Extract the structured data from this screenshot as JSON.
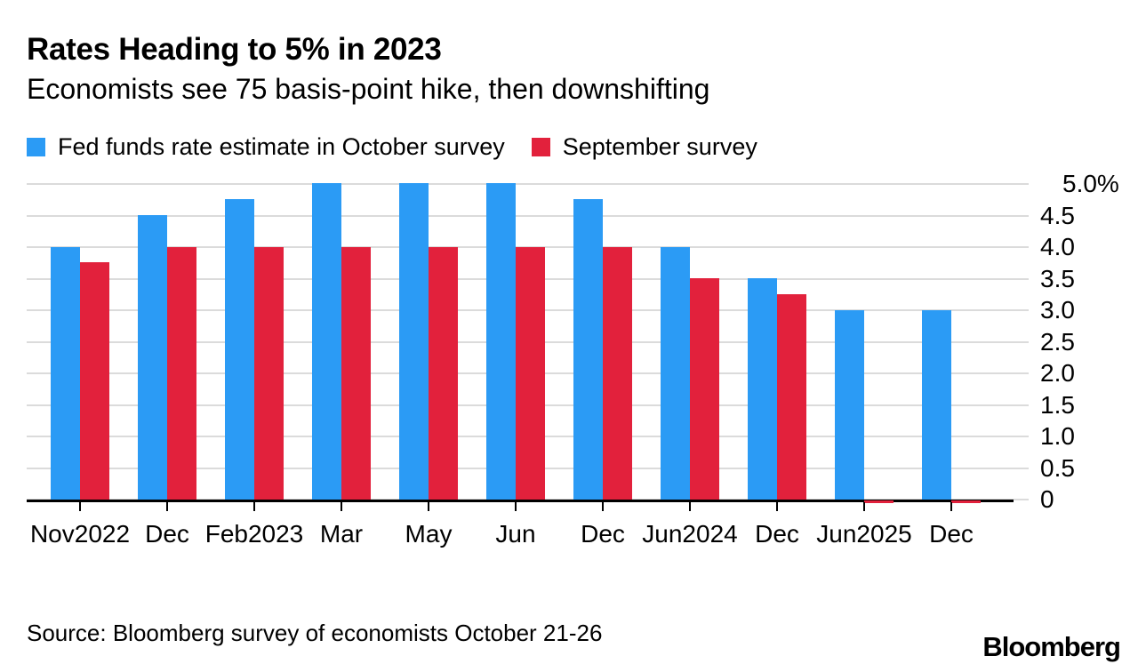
{
  "title": "Rates Heading to 5% in 2023",
  "subtitle": "Economists see 75 basis-point hike, then downshifting",
  "legend": [
    {
      "label": "Fed funds rate estimate in October survey",
      "color": "#2b9bf5"
    },
    {
      "label": "September survey",
      "color": "#e2213c"
    }
  ],
  "source": "Source: Bloomberg survey of economists October 21-26",
  "logo": "Bloomberg",
  "colors": {
    "october_blue": "#2b9bf5",
    "september_red": "#e2213c",
    "gridline": "#dbdbdb",
    "axis": "#000000",
    "text": "#000000",
    "background": "#ffffff"
  },
  "chart_data": {
    "type": "bar",
    "title": "Rates Heading to 5% in 2023",
    "subtitle": "Economists see 75 basis-point hike, then downshifting",
    "unit": "percent",
    "ylim": [
      0,
      5.0
    ],
    "y_tick_step": 0.5,
    "y_tick_labels": [
      "5.0%",
      "4.5",
      "4.0",
      "3.5",
      "3.0",
      "2.5",
      "2.0",
      "1.5",
      "1.0",
      "0.5",
      "0"
    ],
    "grid": "horizontal",
    "legend_position": "top-left",
    "categories": [
      {
        "label": "Nov",
        "year": "2022"
      },
      {
        "label": "Dec",
        "year": ""
      },
      {
        "label": "Feb",
        "year": "2023"
      },
      {
        "label": "Mar",
        "year": ""
      },
      {
        "label": "May",
        "year": ""
      },
      {
        "label": "Jun",
        "year": ""
      },
      {
        "label": "Dec",
        "year": ""
      },
      {
        "label": "Jun",
        "year": "2024"
      },
      {
        "label": "Dec",
        "year": ""
      },
      {
        "label": "Jun",
        "year": "2025"
      },
      {
        "label": "Dec",
        "year": ""
      }
    ],
    "series": [
      {
        "name": "Fed funds rate estimate in October survey",
        "color": "#2b9bf5",
        "values": [
          4.0,
          4.5,
          4.75,
          5.0,
          5.0,
          5.0,
          4.75,
          4.0,
          3.5,
          3.0,
          3.0
        ]
      },
      {
        "name": "September survey",
        "color": "#e2213c",
        "values": [
          3.75,
          4.0,
          4.0,
          4.0,
          4.0,
          4.0,
          4.0,
          3.5,
          3.25,
          0.03,
          0.03
        ]
      }
    ]
  }
}
